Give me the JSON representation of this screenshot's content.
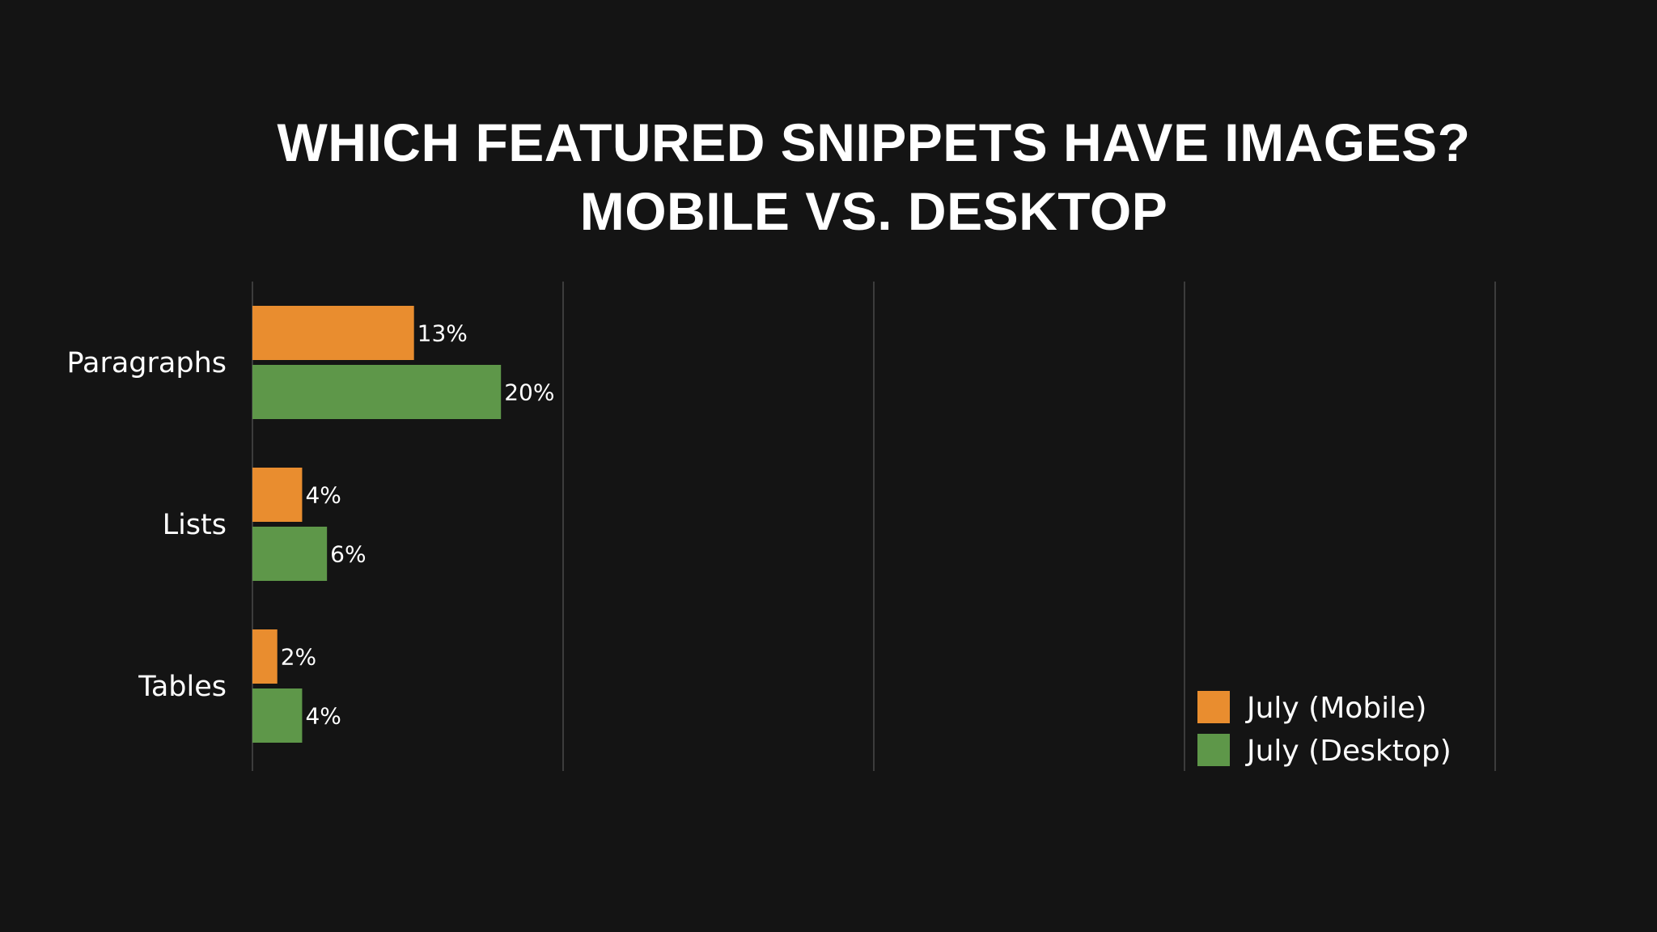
{
  "title_line_1": "WHICH FEATURED SNIPPETS HAVE IMAGES?",
  "title_line_2": "MOBILE VS. DESKTOP",
  "chart_data": {
    "type": "bar",
    "orientation": "horizontal",
    "title": "WHICH FEATURED SNIPPETS HAVE IMAGES? MOBILE VS. DESKTOP",
    "categories": [
      "Paragraphs",
      "Lists",
      "Tables"
    ],
    "series": [
      {
        "name": "July (Mobile)",
        "values": [
          13,
          4,
          2
        ],
        "labels": [
          "13%",
          "4%",
          "2%"
        ],
        "color": "#e98d2f"
      },
      {
        "name": "July (Desktop)",
        "values": [
          20,
          6,
          4
        ],
        "labels": [
          "20%",
          "6%",
          "4%"
        ],
        "color": "#5e9749"
      }
    ],
    "xlim": [
      0,
      100
    ],
    "xgrid": true,
    "grid_color": "#4a4a4a",
    "legend_position": "bottom-right",
    "background": "#141414",
    "text_color": "#ffffff"
  }
}
